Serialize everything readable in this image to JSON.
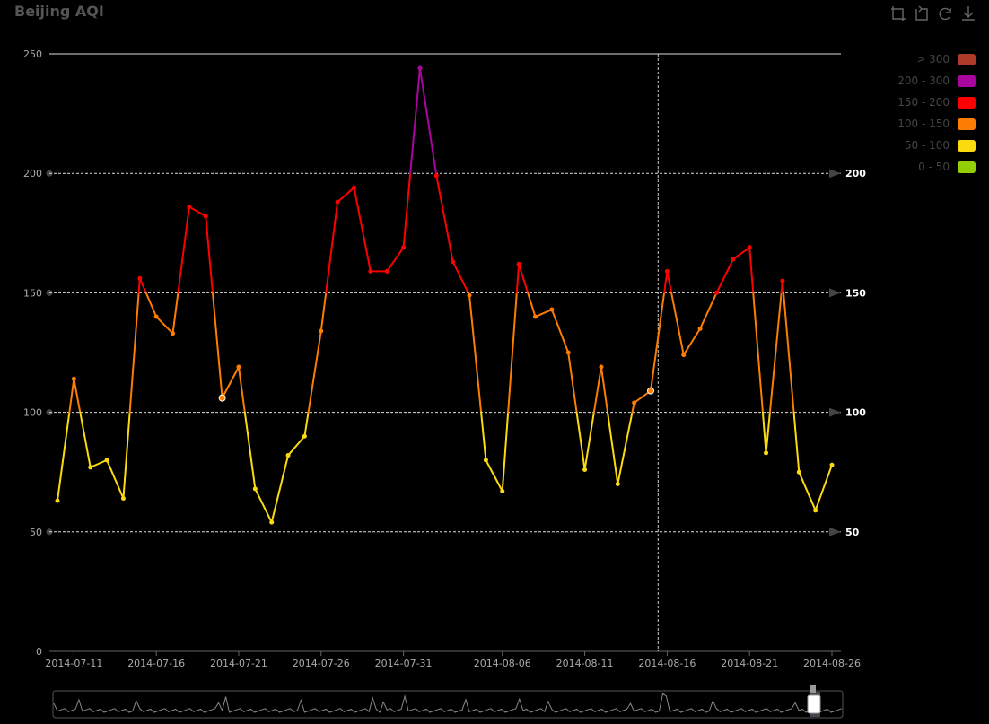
{
  "title": "Beijing AQI",
  "toolbox": [
    {
      "name": "zoom-icon",
      "glyph": "⬚"
    },
    {
      "name": "zoom-reset-icon",
      "glyph": "⬚"
    },
    {
      "name": "restore-icon",
      "glyph": "⟳"
    },
    {
      "name": "download-icon",
      "glyph": "⤓"
    }
  ],
  "legend": [
    {
      "label": "> 300",
      "color": "#ac3b2a"
    },
    {
      "label": "200 - 300",
      "color": "#aa069f"
    },
    {
      "label": "150 - 200",
      "color": "#fd0100"
    },
    {
      "label": "100 - 150",
      "color": "#fc7d02"
    },
    {
      "label": "50 - 100",
      "color": "#fbdb0f"
    },
    {
      "label": "0 - 50",
      "color": "#93ce07"
    }
  ],
  "chart_data": {
    "type": "line",
    "x": [
      "2014-07-10",
      "2014-07-11",
      "2014-07-12",
      "2014-07-13",
      "2014-07-14",
      "2014-07-15",
      "2014-07-16",
      "2014-07-17",
      "2014-07-18",
      "2014-07-19",
      "2014-07-20",
      "2014-07-21",
      "2014-07-22",
      "2014-07-23",
      "2014-07-24",
      "2014-07-25",
      "2014-07-26",
      "2014-07-27",
      "2014-07-28",
      "2014-07-29",
      "2014-07-30",
      "2014-07-31",
      "2014-08-01",
      "2014-08-02",
      "2014-08-03",
      "2014-08-04",
      "2014-08-05",
      "2014-08-06",
      "2014-08-07",
      "2014-08-08",
      "2014-08-09",
      "2014-08-10",
      "2014-08-11",
      "2014-08-12",
      "2014-08-13",
      "2014-08-14",
      "2014-08-15",
      "2014-08-16",
      "2014-08-17",
      "2014-08-18",
      "2014-08-19",
      "2014-08-20",
      "2014-08-21",
      "2014-08-22",
      "2014-08-23",
      "2014-08-24",
      "2014-08-25",
      "2014-08-26"
    ],
    "y": [
      63,
      114,
      77,
      80,
      64,
      156,
      140,
      133,
      186,
      182,
      106,
      119,
      68,
      54,
      82,
      90,
      134,
      188,
      194,
      159,
      159,
      169,
      244,
      199,
      163,
      149,
      80,
      67,
      162,
      140,
      143,
      125,
      76,
      119,
      70,
      104,
      109,
      159,
      124,
      135,
      150,
      164,
      169,
      83,
      155,
      75,
      59,
      78
    ],
    "x_tick_labels": [
      "2014-07-11",
      "2014-07-16",
      "2014-07-21",
      "2014-07-26",
      "2014-07-31",
      "2014-08-06",
      "2014-08-11",
      "2014-08-16",
      "2014-08-21",
      "2014-08-26"
    ],
    "y_ticks": [
      0,
      50,
      100,
      150,
      200,
      250
    ],
    "ylim": [
      0,
      250
    ],
    "mark_lines": [
      50,
      100,
      150,
      200
    ],
    "mark_line_labels": [
      "50",
      "100",
      "150",
      "200"
    ],
    "visual_map_pieces": [
      {
        "min": 0,
        "max": 50,
        "color": "#93ce07"
      },
      {
        "min": 50,
        "max": 100,
        "color": "#fbdb0f"
      },
      {
        "min": 100,
        "max": 150,
        "color": "#fc7d02"
      },
      {
        "min": 150,
        "max": 200,
        "color": "#fd0100"
      },
      {
        "min": 200,
        "max": 300,
        "color": "#aa069f"
      },
      {
        "min": 300,
        "max": 1000,
        "color": "#ac3b2a"
      }
    ],
    "crosshair_x": "2014-08-15",
    "title": "Beijing AQI",
    "xlabel": "",
    "ylabel": "",
    "legend_position": "top-right",
    "grid": true
  }
}
